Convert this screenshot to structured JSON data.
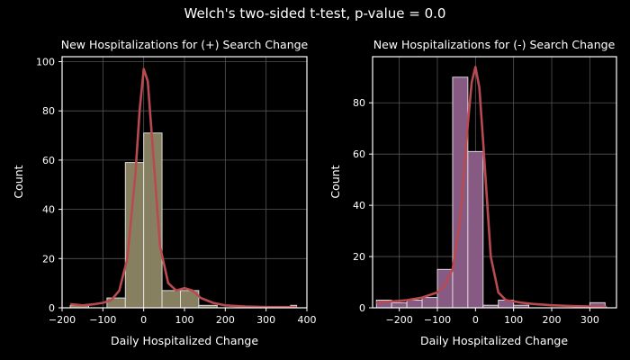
{
  "suptitle": "Welch's two-sided t-test, p-value = 0.0",
  "colors": {
    "background": "#000000",
    "grid": "#555555",
    "spine": "#ffffff",
    "kde": "#b84a50",
    "bar_edge": "#e8e8e8",
    "bar_left": "#878060",
    "bar_right": "#865a82"
  },
  "chart_data": [
    {
      "type": "bar",
      "title": "New Hospitalizations for (+) Search Change",
      "xlabel": "Daily Hospitalized Change",
      "ylabel": "Count",
      "xlim": [
        -200,
        400
      ],
      "ylim": [
        0,
        102
      ],
      "xticks": [
        -200,
        -100,
        0,
        100,
        200,
        300,
        400
      ],
      "yticks": [
        0,
        20,
        40,
        60,
        80,
        100
      ],
      "grid": true,
      "bin_edges": [
        -180,
        -135,
        -90,
        -45,
        0,
        45,
        90,
        135,
        180,
        225,
        270,
        315,
        360,
        375
      ],
      "values": [
        1,
        0,
        4,
        59,
        71,
        7,
        7,
        1,
        0,
        0,
        0,
        0,
        1
      ],
      "kde": {
        "x": [
          -180,
          -150,
          -120,
          -100,
          -80,
          -60,
          -40,
          -20,
          -10,
          0,
          10,
          20,
          40,
          60,
          80,
          100,
          120,
          140,
          170,
          200,
          250,
          300,
          350,
          375
        ],
        "y": [
          1.5,
          1,
          1.5,
          2,
          3,
          7,
          20,
          55,
          80,
          97,
          92,
          70,
          25,
          10,
          7,
          8,
          7,
          4,
          2,
          1,
          0.5,
          0.3,
          0.3,
          0.3
        ]
      }
    },
    {
      "type": "bar",
      "title": "New Hospitalizations for (-) Search Change",
      "xlabel": "Daily Hospitalized Change",
      "ylabel": "Count",
      "xlim": [
        -270,
        370
      ],
      "ylim": [
        0,
        98
      ],
      "xticks": [
        -200,
        -100,
        0,
        100,
        200,
        300
      ],
      "yticks": [
        0,
        20,
        40,
        60,
        80
      ],
      "grid": true,
      "bin_edges": [
        -260,
        -220,
        -180,
        -140,
        -100,
        -60,
        -20,
        20,
        60,
        100,
        140,
        180,
        220,
        260,
        300,
        340
      ],
      "values": [
        3,
        2,
        3,
        4,
        15,
        90,
        61,
        1,
        3,
        1,
        0,
        0,
        0,
        0,
        2
      ],
      "kde": {
        "x": [
          -260,
          -220,
          -180,
          -140,
          -100,
          -80,
          -60,
          -40,
          -20,
          -10,
          0,
          10,
          20,
          40,
          60,
          80,
          100,
          120,
          150,
          200,
          250,
          300,
          345
        ],
        "y": [
          2,
          2.5,
          3,
          4,
          6,
          9,
          15,
          35,
          72,
          88,
          94,
          86,
          65,
          20,
          6,
          3,
          2.5,
          2,
          1.5,
          1,
          0.7,
          0.5,
          0.3
        ]
      }
    }
  ]
}
